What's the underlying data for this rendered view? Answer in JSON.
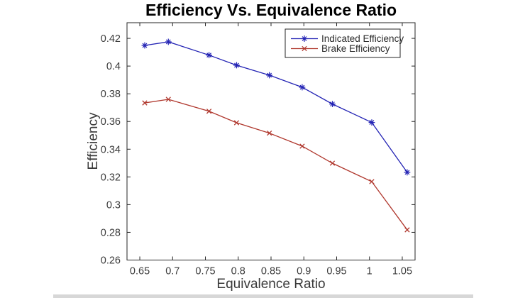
{
  "chart_data": {
    "type": "line",
    "title": "Efficiency Vs. Equivalence Ratio",
    "xlabel": "Equivalence Ratio",
    "ylabel": "Efficiency",
    "xlim": [
      0.6305,
      1.0695
    ],
    "ylim": [
      0.26,
      0.4313
    ],
    "xticks": [
      0.65,
      0.7,
      0.75,
      0.8,
      0.85,
      0.9,
      0.95,
      1,
      1.05
    ],
    "xtick_labels": [
      "0.65",
      "0.7",
      "0.75",
      "0.8",
      "0.85",
      "0.9",
      "0.95",
      "1",
      "1.05"
    ],
    "yticks": [
      0.26,
      0.28,
      0.3,
      0.32,
      0.34,
      0.36,
      0.38,
      0.4,
      0.42
    ],
    "ytick_labels": [
      "0.26",
      "0.28",
      "0.3",
      "0.32",
      "0.34",
      "0.36",
      "0.38",
      "0.4",
      "0.42"
    ],
    "grid": false,
    "legend_position": "top-right-inside",
    "x": [
      0.6575,
      0.6935,
      0.7555,
      0.7975,
      0.8475,
      0.8975,
      0.9435,
      1.0035,
      1.0575
    ],
    "series": [
      {
        "name": "Indicated Efficiency",
        "color": "#2323b4",
        "marker": "asterisk",
        "values": [
          0.4149,
          0.4175,
          0.4079,
          0.4006,
          0.3934,
          0.3847,
          0.3726,
          0.3593,
          0.3233
        ]
      },
      {
        "name": "Brake Efficiency",
        "color": "#b0382e",
        "marker": "x",
        "values": [
          0.3734,
          0.376,
          0.3674,
          0.3591,
          0.3516,
          0.3422,
          0.3299,
          0.3166,
          0.2818
        ]
      }
    ]
  },
  "colors": {
    "axis": "#262626",
    "tick_label": "#3b3b3b",
    "legend_text": "#2b2b2b",
    "legend_border": "#262626",
    "background": "#ffffff",
    "window_strip": "#d7d7d7"
  }
}
